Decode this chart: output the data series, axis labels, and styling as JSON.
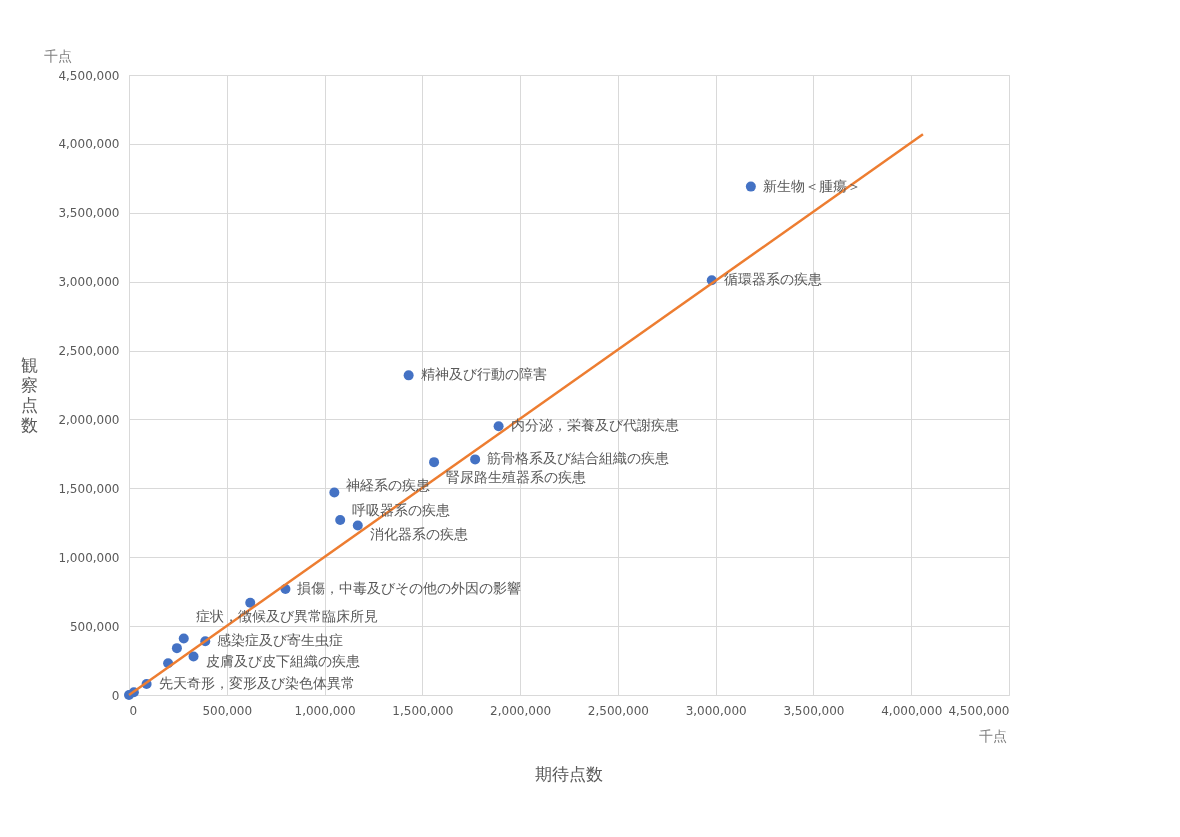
{
  "chart_data": {
    "type": "scatter",
    "xlabel": "期待点数",
    "ylabel": "観察点数",
    "xlim": [
      0,
      4500000
    ],
    "ylim": [
      0,
      4500000
    ],
    "xticks": [
      0,
      {
        "value": 500000,
        "label": "500,000"
      },
      {
        "value": 1000000,
        "label": "1,000,000"
      },
      {
        "value": 1500000,
        "label": "1,500,000"
      },
      {
        "value": 2000000,
        "label": "2,000,000"
      },
      {
        "value": 2500000,
        "label": "2,500,000"
      },
      {
        "value": 3000000,
        "label": "3,000,000"
      },
      {
        "value": 3500000,
        "label": "3,500,000"
      },
      {
        "value": 4000000,
        "label": "4,000,000"
      },
      {
        "value": 4500000,
        "label": "4,500,000"
      }
    ],
    "yticks": [
      0,
      {
        "value": 500000,
        "label": "500,000"
      },
      {
        "value": 1000000,
        "label": "1,000,000"
      },
      {
        "value": 1500000,
        "label": "1,500,000"
      },
      {
        "value": 2000000,
        "label": "2,000,000"
      },
      {
        "value": 2500000,
        "label": "2,500,000"
      },
      {
        "value": 3000000,
        "label": "3,000,000"
      },
      {
        "value": 3500000,
        "label": "3,500,000"
      },
      {
        "value": 4000000,
        "label": "4,000,000"
      },
      {
        "value": 4500000,
        "label": "4,500,000"
      }
    ],
    "grid": true,
    "marker": "circle",
    "series": [
      {
        "color": "#4472c4",
        "x": [
          3180000,
          2980000,
          1430000,
          1890000,
          1770000,
          1560000,
          1050000,
          1080000,
          1170000,
          800000,
          620000,
          280000,
          245000,
          390000,
          330000,
          200000,
          90000,
          25000,
          0
        ],
        "values": [
          3690000,
          3010000,
          2320000,
          1950000,
          1710000,
          1690000,
          1470000,
          1270000,
          1230000,
          770000,
          670000,
          410000,
          340000,
          390000,
          280000,
          230000,
          80000,
          20000,
          0
        ]
      },
      {
        "type": "line",
        "marker": "none",
        "color": "#ed7d31",
        "x": [
          0,
          4060000
        ],
        "values": [
          0,
          4070000
        ]
      }
    ],
    "annotations": [
      "千点",
      "千点",
      {
        "text": "新生物＜腫瘍＞",
        "x": 3180000,
        "y": 3690000
      },
      {
        "text": "循環器系の疾患",
        "x": 2980000,
        "y": 3010000
      },
      {
        "text": "精神及び行動の障害",
        "x": 1430000,
        "y": 2320000
      },
      {
        "text": "内分泌，栄養及び代謝疾患",
        "x": 1890000,
        "y": 1950000
      },
      {
        "text": "筋骨格系及び結合組織の疾患",
        "x": 1770000,
        "y": 1710000
      },
      {
        "text": "腎尿路生殖器系の疾患",
        "x": 1560000,
        "y": 1690000
      },
      {
        "text": "神経系の疾患",
        "x": 1050000,
        "y": 1470000
      },
      {
        "text": "呼吸器系の疾患",
        "x": 1080000,
        "y": 1270000
      },
      {
        "text": "消化器系の疾患",
        "x": 1170000,
        "y": 1230000
      },
      {
        "text": "損傷，中毒及びその他の外因の影響",
        "x": 800000,
        "y": 770000
      },
      {
        "text": "症状，徴候及び異常臨床所見",
        "x": 280000,
        "y": 410000
      },
      {
        "text": "感染症及び寄生虫症",
        "x": 390000,
        "y": 390000
      },
      {
        "text": "皮膚及び皮下組織の疾患",
        "x": 330000,
        "y": 280000
      },
      {
        "text": "先天奇形，変形及び染色体異常",
        "x": 90000,
        "y": 80000
      }
    ]
  }
}
